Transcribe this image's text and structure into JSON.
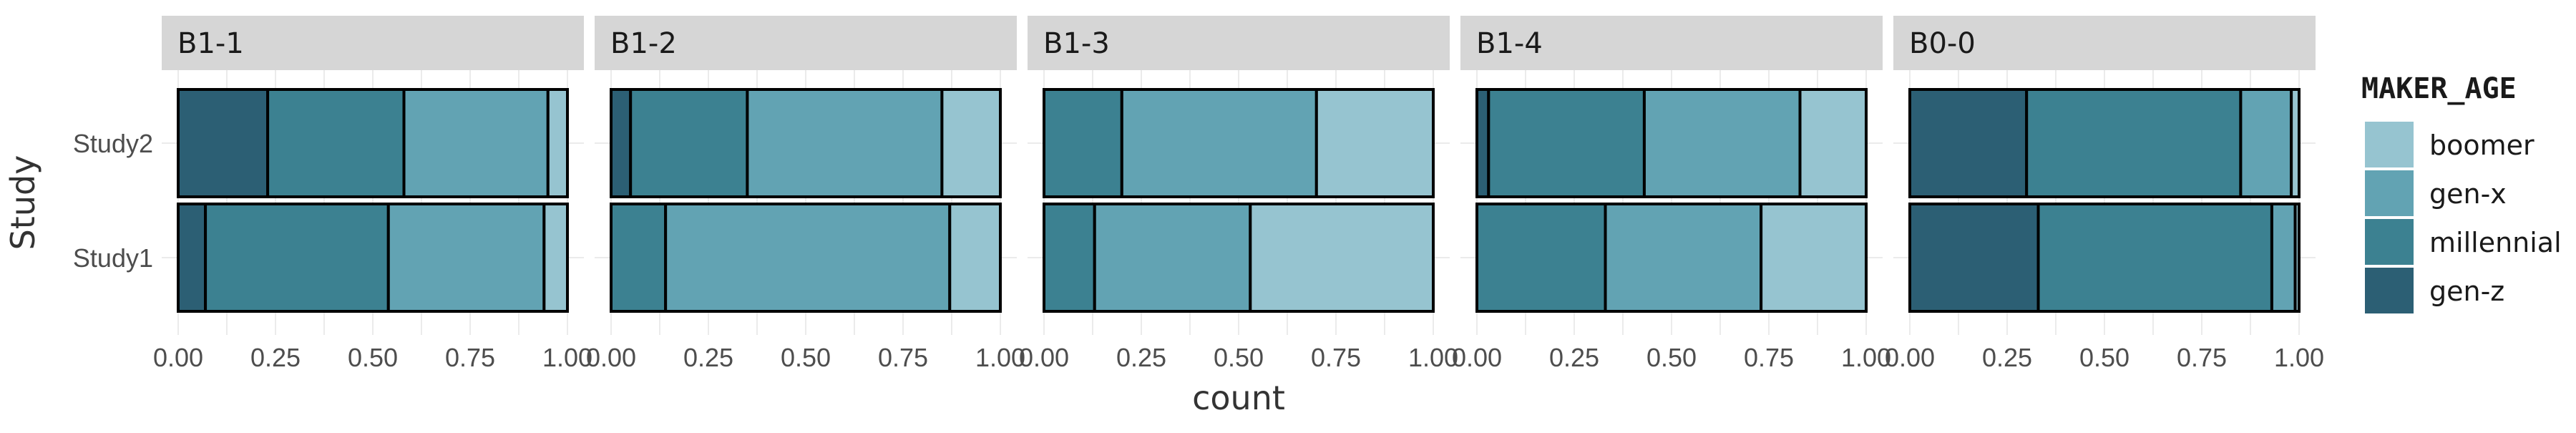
{
  "chart_data": {
    "type": "bar",
    "orientation": "horizontal",
    "stacked": "fill",
    "xlabel": "count",
    "ylabel": "Study",
    "xlim": [
      0,
      1
    ],
    "x_ticks": [
      "0.00",
      "0.25",
      "0.50",
      "0.75",
      "1.00"
    ],
    "categories": [
      "Study2",
      "Study1"
    ],
    "grid": true,
    "legend": {
      "title": "MAKER_AGE",
      "position": "right",
      "items": [
        {
          "name": "boomer",
          "color": "#96c4d0"
        },
        {
          "name": "gen-x",
          "color": "#62a3b3"
        },
        {
          "name": "millennial",
          "color": "#3c8191"
        },
        {
          "name": "gen-z",
          "color": "#2c5f74"
        }
      ]
    },
    "stack_order": [
      "gen-z",
      "millennial",
      "gen-x",
      "boomer"
    ],
    "panels": [
      {
        "title": "B1-1",
        "bars": [
          {
            "category": "Study2",
            "values": {
              "gen-z": 0.23,
              "millennial": 0.35,
              "gen-x": 0.37,
              "boomer": 0.05
            }
          },
          {
            "category": "Study1",
            "values": {
              "gen-z": 0.07,
              "millennial": 0.47,
              "gen-x": 0.4,
              "boomer": 0.06
            }
          }
        ]
      },
      {
        "title": "B1-2",
        "bars": [
          {
            "category": "Study2",
            "values": {
              "gen-z": 0.05,
              "millennial": 0.3,
              "gen-x": 0.5,
              "boomer": 0.15
            }
          },
          {
            "category": "Study1",
            "values": {
              "gen-z": 0.0,
              "millennial": 0.14,
              "gen-x": 0.73,
              "boomer": 0.13
            }
          }
        ]
      },
      {
        "title": "B1-3",
        "bars": [
          {
            "category": "Study2",
            "values": {
              "gen-z": 0.0,
              "millennial": 0.2,
              "gen-x": 0.5,
              "boomer": 0.3
            }
          },
          {
            "category": "Study1",
            "values": {
              "gen-z": 0.0,
              "millennial": 0.13,
              "gen-x": 0.4,
              "boomer": 0.47
            }
          }
        ]
      },
      {
        "title": "B1-4",
        "bars": [
          {
            "category": "Study2",
            "values": {
              "gen-z": 0.03,
              "millennial": 0.4,
              "gen-x": 0.4,
              "boomer": 0.17
            }
          },
          {
            "category": "Study1",
            "values": {
              "gen-z": 0.0,
              "millennial": 0.33,
              "gen-x": 0.4,
              "boomer": 0.27
            }
          }
        ]
      },
      {
        "title": "B0-0",
        "bars": [
          {
            "category": "Study2",
            "values": {
              "gen-z": 0.3,
              "millennial": 0.55,
              "gen-x": 0.13,
              "boomer": 0.02
            }
          },
          {
            "category": "Study1",
            "values": {
              "gen-z": 0.33,
              "millennial": 0.6,
              "gen-x": 0.06,
              "boomer": 0.01
            }
          }
        ]
      }
    ]
  }
}
